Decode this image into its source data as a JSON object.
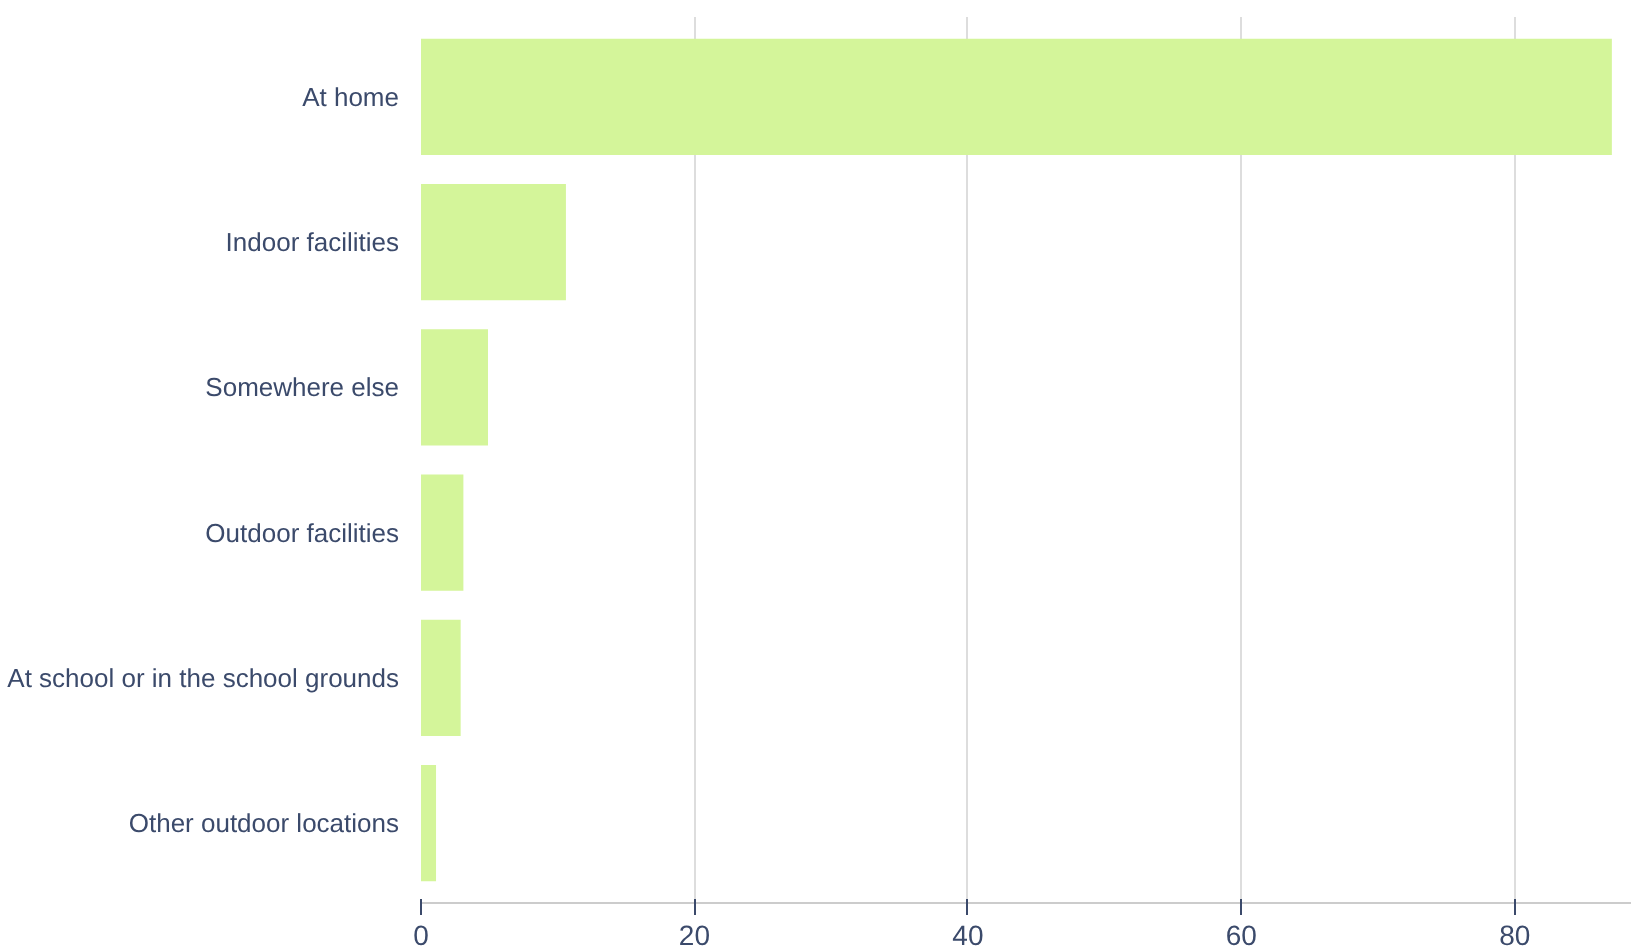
{
  "chart_data": {
    "type": "bar",
    "orientation": "horizontal",
    "categories": [
      "At home",
      "Indoor facilities",
      "Somewhere else",
      "Outdoor facilities",
      "At school or in the school grounds",
      "Other outdoor locations"
    ],
    "values": [
      87.1,
      10.6,
      4.9,
      3.1,
      2.9,
      1.1
    ],
    "color": "#d4f59a",
    "xlim": [
      0,
      88.5
    ],
    "xticks": [
      0,
      20,
      40,
      60,
      80
    ],
    "grid": "x"
  }
}
